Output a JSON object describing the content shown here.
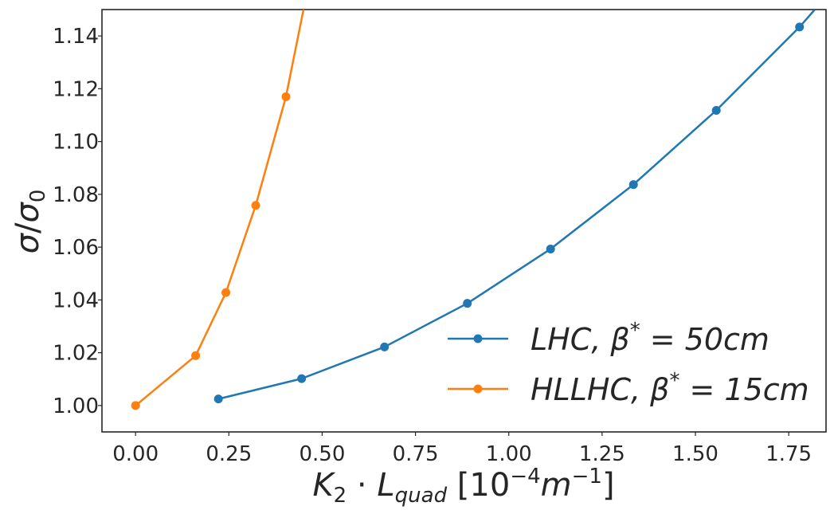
{
  "chart_data": {
    "type": "line",
    "xlabel": "K2 · Lquad [10−4m−1]",
    "ylabel": "σ/σ0",
    "xlim": [
      -0.09,
      1.85
    ],
    "ylim": [
      0.99,
      1.15
    ],
    "xticks": [
      "0.00",
      "0.25",
      "0.50",
      "0.75",
      "1.00",
      "1.25",
      "1.50",
      "1.75"
    ],
    "yticks": [
      "1.00",
      "1.02",
      "1.04",
      "1.06",
      "1.08",
      "1.10",
      "1.12",
      "1.14"
    ],
    "grid": false,
    "legend_position": "lower-right",
    "series": [
      {
        "name": "LHC, β* = 50cm",
        "color": "#1f77b4",
        "x": [
          0.222,
          0.445,
          0.667,
          0.889,
          1.112,
          1.334,
          1.556,
          1.779,
          1.82
        ],
        "y": [
          1.0025,
          1.0102,
          1.0222,
          1.0387,
          1.0593,
          1.0837,
          1.1118,
          1.1434,
          1.15
        ],
        "markers": [
          true,
          true,
          true,
          true,
          true,
          true,
          true,
          true,
          false
        ]
      },
      {
        "name": "HLLHC, β* = 15cm",
        "color": "#ff7f0e",
        "x": [
          0.0,
          0.161,
          0.242,
          0.322,
          0.403,
          0.45
        ],
        "y": [
          1.0,
          1.0189,
          1.0428,
          1.0758,
          1.117,
          1.15
        ],
        "markers": [
          true,
          true,
          true,
          true,
          true,
          false
        ]
      }
    ]
  }
}
